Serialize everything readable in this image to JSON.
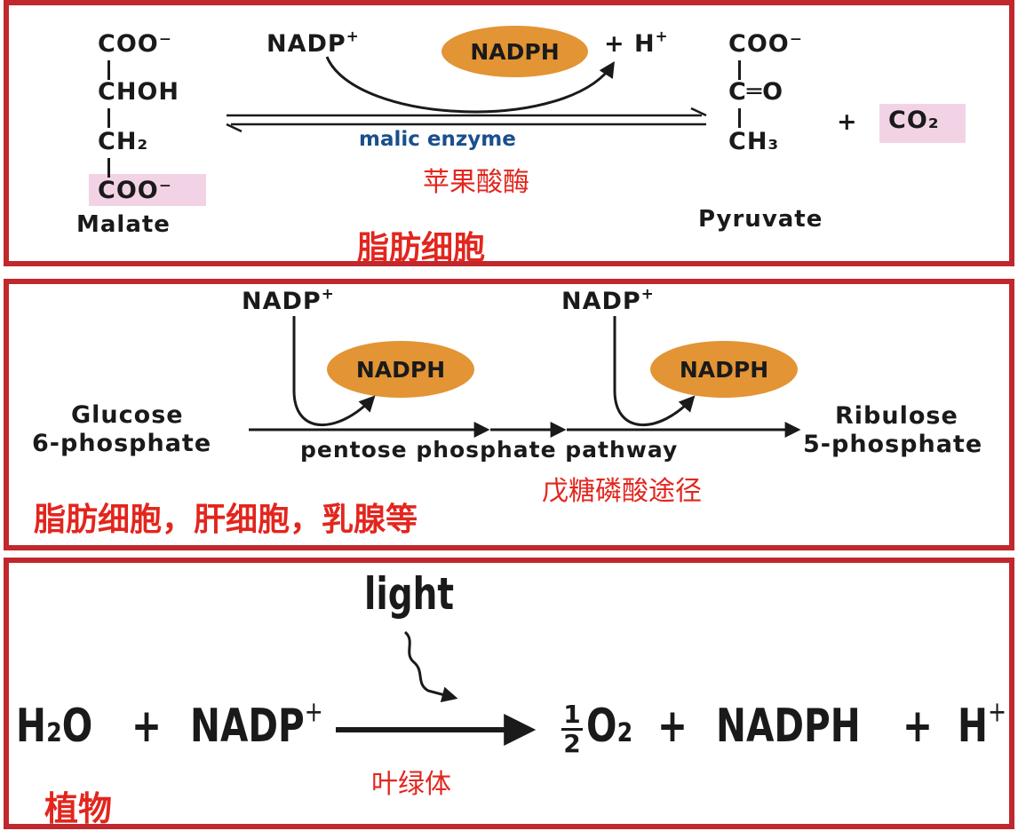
{
  "colors": {
    "border": "#c0282d",
    "red_text": "#e2261e",
    "oval": "#e39434",
    "highlight": "#f2d3e6",
    "enzyme_blue": "#1b4f8c"
  },
  "panel1": {
    "malate_lines": [
      "COO⁻",
      "CHOH",
      "CH₂",
      "COO⁻"
    ],
    "malate_label": "Malate",
    "nadp": "NADP",
    "nadph": "NADPH",
    "plus_h": "+ H",
    "pyruvate_lines": [
      "COO⁻",
      "C═O",
      "CH₃"
    ],
    "plus_co2": "+",
    "co2": "CO₂",
    "pyruvate_label": "Pyruvate",
    "enzyme_en": "malic enzyme",
    "enzyme_cn": "苹果酸酶",
    "location_cn": "脂肪细胞"
  },
  "panel2": {
    "nadp1": "NADP",
    "nadph1": "NADPH",
    "nadp2": "NADP",
    "nadph2": "NADPH",
    "substrate": [
      "Glucose",
      "6-phosphate"
    ],
    "product": [
      "Ribulose",
      "5-phosphate"
    ],
    "pathway_en": "pentose phosphate pathway",
    "pathway_cn": "戊糖磷酸途径",
    "location_cn": "脂肪细胞，肝细胞，乳腺等"
  },
  "panel3": {
    "light": "light",
    "water": "H₂O",
    "plus1": "+",
    "nadp": "NADP",
    "half_num": "1",
    "half_den": "2",
    "o2": "O₂",
    "plus2": "+",
    "nadph": "NADPH",
    "plus3": "+",
    "h": "H",
    "organelle_cn": "叶绿体",
    "location_cn": "植物"
  }
}
